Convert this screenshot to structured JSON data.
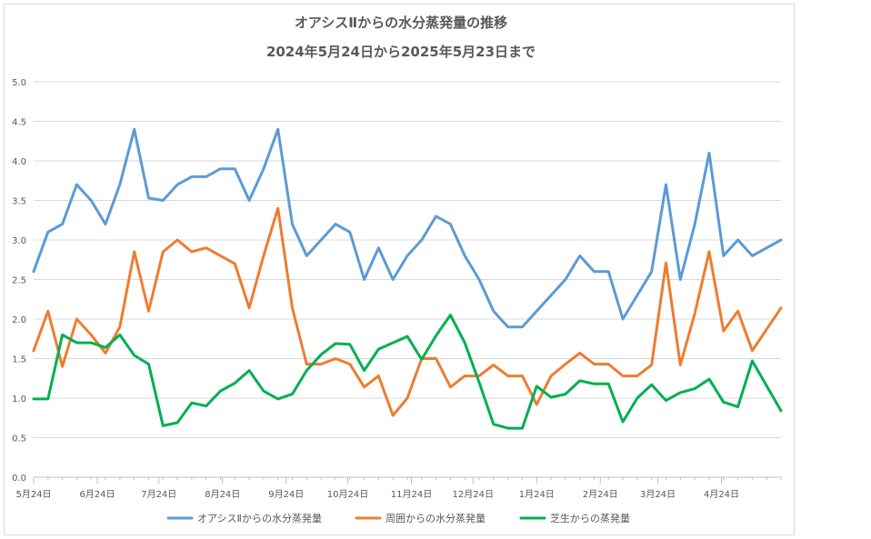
{
  "chart_data": {
    "type": "line",
    "title": "オアシスⅡからの水分蒸発量の推移",
    "subtitle": "2024年5月24日から2025年5月23日まで",
    "xlabel": "",
    "ylabel": "",
    "ylim": [
      0,
      5
    ],
    "yticks": [
      "0.0",
      "0.5",
      "1.0",
      "1.5",
      "2.0",
      "2.5",
      "3.0",
      "3.5",
      "4.0",
      "4.5",
      "5.0"
    ],
    "xrange": [
      "2024-05-24",
      "2025-05-23"
    ],
    "xticks": [
      {
        "label": "5月24日",
        "date": "2024-05-24"
      },
      {
        "label": "6月24日",
        "date": "2024-06-24"
      },
      {
        "label": "7月24日",
        "date": "2024-07-24"
      },
      {
        "label": "8月24日",
        "date": "2024-08-24"
      },
      {
        "label": "9月24日",
        "date": "2024-09-24"
      },
      {
        "label": "10月24日",
        "date": "2024-10-24"
      },
      {
        "label": "11月24日",
        "date": "2024-11-24"
      },
      {
        "label": "12月24日",
        "date": "2024-12-24"
      },
      {
        "label": "1月24日",
        "date": "2025-01-24"
      },
      {
        "label": "2月24日",
        "date": "2025-02-24"
      },
      {
        "label": "3月24日",
        "date": "2025-03-24"
      },
      {
        "label": "4月24日",
        "date": "2025-04-24"
      }
    ],
    "grid": true,
    "legend_position": "bottom",
    "dates": [
      "2024-05-24",
      "2024-05-31",
      "2024-06-07",
      "2024-06-14",
      "2024-06-21",
      "2024-06-28",
      "2024-07-05",
      "2024-07-12",
      "2024-07-19",
      "2024-07-26",
      "2024-08-02",
      "2024-08-09",
      "2024-08-16",
      "2024-08-23",
      "2024-08-30",
      "2024-09-06",
      "2024-09-13",
      "2024-09-20",
      "2024-09-27",
      "2024-10-04",
      "2024-10-11",
      "2024-10-18",
      "2024-10-25",
      "2024-11-01",
      "2024-11-08",
      "2024-11-15",
      "2024-11-22",
      "2024-11-29",
      "2024-12-06",
      "2024-12-13",
      "2024-12-20",
      "2024-12-27",
      "2025-01-03",
      "2025-01-10",
      "2025-01-17",
      "2025-01-24",
      "2025-01-31",
      "2025-02-07",
      "2025-02-14",
      "2025-02-21",
      "2025-02-28",
      "2025-03-07",
      "2025-03-14",
      "2025-03-21",
      "2025-03-28",
      "2025-04-04",
      "2025-04-11",
      "2025-04-18",
      "2025-04-25",
      "2025-05-02",
      "2025-05-09",
      "2025-05-23"
    ],
    "series": [
      {
        "name": "オアシスⅡからの水分蒸発量",
        "color": "#5B9BD5",
        "values": [
          2.6,
          3.1,
          3.2,
          3.7,
          3.5,
          3.2,
          3.7,
          4.4,
          3.53,
          3.5,
          3.7,
          3.8,
          3.8,
          3.9,
          3.9,
          3.5,
          3.9,
          4.4,
          3.2,
          2.8,
          3.0,
          3.2,
          3.1,
          2.5,
          2.9,
          2.5,
          2.8,
          3.0,
          3.3,
          3.2,
          2.8,
          2.5,
          2.1,
          1.9,
          1.9,
          2.1,
          2.3,
          2.5,
          2.8,
          2.6,
          2.6,
          2.0,
          2.3,
          2.6,
          3.7,
          2.5,
          3.2,
          4.1,
          2.8,
          3.0,
          2.8,
          3.0
        ]
      },
      {
        "name": "周囲からの水分蒸発量",
        "color": "#ED7D31",
        "values": [
          1.6,
          2.1,
          1.4,
          2.0,
          1.8,
          1.57,
          1.9,
          2.85,
          2.1,
          2.85,
          3.0,
          2.85,
          2.9,
          2.8,
          2.7,
          2.14,
          2.8,
          3.4,
          2.14,
          1.43,
          1.43,
          1.5,
          1.43,
          1.14,
          1.28,
          0.78,
          1.0,
          1.5,
          1.5,
          1.14,
          1.28,
          1.28,
          1.42,
          1.28,
          1.28,
          0.92,
          1.28,
          1.43,
          1.57,
          1.43,
          1.43,
          1.28,
          1.28,
          1.42,
          2.71,
          1.42,
          2.07,
          2.85,
          1.85,
          2.1,
          1.6,
          2.14
        ]
      },
      {
        "name": "芝生からの蒸発量",
        "color": "#00B050",
        "values": [
          0.99,
          0.99,
          1.8,
          1.7,
          1.7,
          1.64,
          1.8,
          1.54,
          1.43,
          0.65,
          0.69,
          0.94,
          0.9,
          1.09,
          1.19,
          1.35,
          1.09,
          0.99,
          1.05,
          1.35,
          1.55,
          1.69,
          1.68,
          1.35,
          1.62,
          1.7,
          1.78,
          1.49,
          1.79,
          2.05,
          1.7,
          1.2,
          0.67,
          0.62,
          0.62,
          1.15,
          1.01,
          1.05,
          1.22,
          1.18,
          1.18,
          0.7,
          1.0,
          1.17,
          0.97,
          1.07,
          1.12,
          1.24,
          0.95,
          0.89,
          1.47,
          0.84
        ]
      }
    ]
  }
}
